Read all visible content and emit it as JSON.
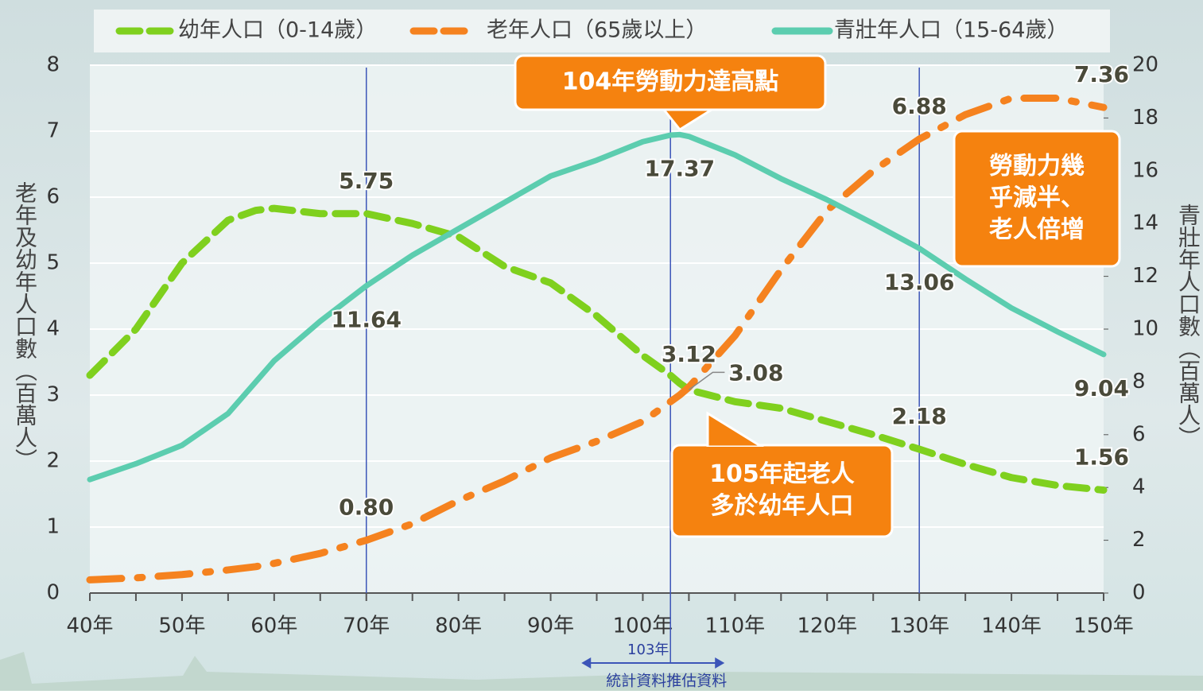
{
  "chart_data": {
    "type": "line",
    "x": [
      40,
      45,
      50,
      55,
      58,
      60,
      65,
      70,
      75,
      80,
      85,
      90,
      95,
      100,
      103,
      104,
      105,
      110,
      115,
      120,
      125,
      130,
      135,
      140,
      145,
      150
    ],
    "series": [
      {
        "name": "幼年人口（0-14歲）",
        "color": "#7fd01e",
        "style": "dashed",
        "values": [
          3.3,
          4.0,
          5.0,
          5.65,
          5.8,
          5.83,
          5.75,
          5.75,
          5.6,
          5.4,
          4.95,
          4.7,
          4.2,
          3.6,
          3.3,
          3.18,
          3.08,
          2.9,
          2.8,
          2.6,
          2.4,
          2.18,
          1.95,
          1.75,
          1.63,
          1.56
        ],
        "value_labels": [
          null,
          null,
          null,
          null,
          null,
          null,
          null,
          "5.75",
          null,
          null,
          null,
          null,
          null,
          null,
          null,
          null,
          "3.08",
          null,
          null,
          null,
          null,
          "2.18",
          null,
          null,
          null,
          "1.56"
        ]
      },
      {
        "name": "老年人口（65歲以上）",
        "color": "#f5821f",
        "style": "dashdot",
        "values": [
          0.2,
          0.23,
          0.28,
          0.35,
          0.4,
          0.45,
          0.6,
          0.8,
          1.05,
          1.4,
          1.7,
          2.05,
          2.3,
          2.6,
          2.9,
          3.0,
          3.12,
          3.9,
          4.9,
          5.8,
          6.4,
          6.88,
          7.25,
          7.5,
          7.5,
          7.36
        ],
        "value_labels": [
          null,
          null,
          null,
          null,
          null,
          null,
          null,
          "0.80",
          null,
          null,
          null,
          null,
          null,
          null,
          null,
          null,
          "3.12",
          null,
          null,
          null,
          null,
          "6.88",
          null,
          null,
          null,
          "7.36"
        ]
      },
      {
        "name": "青壯年人口（15-64歲）",
        "color": "#5ccdaf",
        "style": "solid",
        "axis": "y2",
        "values": [
          4.3,
          4.9,
          5.6,
          6.8,
          8.0,
          8.8,
          10.3,
          11.64,
          12.8,
          13.8,
          14.8,
          15.8,
          16.4,
          17.1,
          17.35,
          17.37,
          17.3,
          16.6,
          15.7,
          14.9,
          14.0,
          13.06,
          11.9,
          10.8,
          9.9,
          9.04
        ],
        "value_labels": [
          null,
          null,
          null,
          null,
          null,
          null,
          null,
          "11.64",
          null,
          null,
          null,
          null,
          null,
          null,
          null,
          "17.37",
          null,
          null,
          null,
          null,
          null,
          "13.06",
          null,
          null,
          null,
          "9.04"
        ]
      }
    ],
    "xlim": [
      40,
      150
    ],
    "xticks": [
      {
        "value": 40,
        "label": "40年"
      },
      {
        "value": 50,
        "label": "50年"
      },
      {
        "value": 60,
        "label": "60年"
      },
      {
        "value": 70,
        "label": "70年"
      },
      {
        "value": 80,
        "label": "80年"
      },
      {
        "value": 90,
        "label": "90年"
      },
      {
        "value": 100,
        "label": "100年"
      },
      {
        "value": 110,
        "label": "110年"
      },
      {
        "value": 120,
        "label": "120年"
      },
      {
        "value": 130,
        "label": "130年"
      },
      {
        "value": 140,
        "label": "140年"
      },
      {
        "value": 150,
        "label": "150年"
      }
    ],
    "ylim": [
      0,
      8
    ],
    "yticks": [
      0,
      1,
      2,
      3,
      4,
      5,
      6,
      7,
      8
    ],
    "y2lim": [
      0,
      20
    ],
    "y2ticks": [
      0,
      2,
      4,
      6,
      8,
      10,
      12,
      14,
      16,
      18,
      20
    ],
    "ylabel": "老年及幼年人口數（百萬人）",
    "y2label": "青壯年人口數（百萬人）",
    "grid": true,
    "reference_lines": [
      70,
      103,
      130
    ],
    "divider": {
      "label": "103年",
      "left_label": "統計資料",
      "right_label": "推估資料"
    },
    "callouts": [
      {
        "lines": [
          "104年勞動力達高點"
        ]
      },
      {
        "lines": [
          "105年起老人",
          "多於幼年人口"
        ]
      },
      {
        "lines": [
          "勞動力幾",
          "乎減半、",
          "老人倍增"
        ]
      }
    ]
  }
}
